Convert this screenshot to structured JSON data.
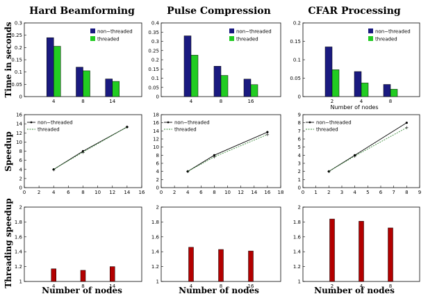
{
  "row_labels": [
    "Time in seconds",
    "Speedup",
    "Threading speedup"
  ],
  "colors": {
    "non_threaded_bar": "#1a1a80",
    "threaded_bar": "#22cc22",
    "threading_bar": "#b30000",
    "speedup_line": "#000000",
    "speedup_threaded_line": "#3a8a3a"
  },
  "chart_data": [
    {
      "id": "hb-time",
      "type": "bar",
      "title": "Hard Beamforming",
      "xlabel": "",
      "ylabel": "Time in seconds",
      "categories": [
        "4",
        "8",
        "14"
      ],
      "ylim": [
        0,
        0.3
      ],
      "yticks": [
        "0",
        "0.05",
        "0.1",
        "0.15",
        "0.2",
        "0.25",
        "0.3"
      ],
      "legend": "top-right",
      "series": [
        {
          "name": "non−threaded",
          "values": [
            0.24,
            0.12,
            0.072
          ]
        },
        {
          "name": "threaded",
          "values": [
            0.205,
            0.105,
            0.062
          ]
        }
      ]
    },
    {
      "id": "pc-time",
      "type": "bar",
      "title": "Pulse Compression",
      "xlabel": "",
      "ylabel": "",
      "categories": [
        "4",
        "8",
        "16"
      ],
      "ylim": [
        0,
        0.4
      ],
      "yticks": [
        "0",
        "0.05",
        "0.1",
        "0.15",
        "0.2",
        "0.25",
        "0.3",
        "0.35",
        "0.4"
      ],
      "legend": "top-right",
      "series": [
        {
          "name": "non−threaded",
          "values": [
            0.33,
            0.165,
            0.095
          ]
        },
        {
          "name": "threaded",
          "values": [
            0.225,
            0.115,
            0.065
          ]
        }
      ]
    },
    {
      "id": "cfar-time",
      "type": "bar",
      "title": "CFAR Processing",
      "xlabel": "Number of nodes",
      "ylabel": "",
      "categories": [
        "2",
        "4",
        "8"
      ],
      "ylim": [
        0,
        0.2
      ],
      "yticks": [
        "0",
        "0.05",
        "0.1",
        "0.15",
        "0.2"
      ],
      "legend": "top-right",
      "series": [
        {
          "name": "non−threaded",
          "values": [
            0.135,
            0.068,
            0.033
          ]
        },
        {
          "name": "threaded",
          "values": [
            0.073,
            0.037,
            0.02
          ]
        }
      ]
    },
    {
      "id": "hb-speedup",
      "type": "line",
      "title": "",
      "xlabel": "",
      "ylabel": "Speedup",
      "xlim": [
        0,
        16
      ],
      "ylim": [
        0,
        16
      ],
      "xticks": [
        "0",
        "2",
        "4",
        "6",
        "8",
        "10",
        "12",
        "14",
        "16"
      ],
      "yticks": [
        "0",
        "2",
        "4",
        "6",
        "8",
        "10",
        "12",
        "14",
        "16"
      ],
      "legend": "top-left",
      "series": [
        {
          "name": "non−threaded",
          "x": [
            4,
            8,
            14
          ],
          "y": [
            4,
            8,
            13.3
          ]
        },
        {
          "name": "threaded",
          "x": [
            4,
            8,
            14
          ],
          "y": [
            4,
            7.8,
            13.3
          ]
        }
      ]
    },
    {
      "id": "pc-speedup",
      "type": "line",
      "title": "",
      "xlabel": "",
      "ylabel": "",
      "xlim": [
        0,
        18
      ],
      "ylim": [
        0,
        18
      ],
      "xticks": [
        "0",
        "2",
        "4",
        "6",
        "8",
        "10",
        "12",
        "14",
        "16",
        "18"
      ],
      "yticks": [
        "0",
        "2",
        "4",
        "6",
        "8",
        "10",
        "12",
        "14",
        "16",
        "18"
      ],
      "legend": "top-left",
      "series": [
        {
          "name": "non−threaded",
          "x": [
            4,
            8,
            16
          ],
          "y": [
            4,
            8,
            13.7
          ]
        },
        {
          "name": "threaded",
          "x": [
            4,
            8,
            16
          ],
          "y": [
            4,
            7.6,
            13.1
          ]
        }
      ]
    },
    {
      "id": "cfar-speedup",
      "type": "line",
      "title": "",
      "xlabel": "",
      "ylabel": "",
      "xlim": [
        0,
        9
      ],
      "ylim": [
        0,
        9
      ],
      "xticks": [
        "0",
        "1",
        "2",
        "3",
        "4",
        "5",
        "6",
        "7",
        "8",
        "9"
      ],
      "yticks": [
        "0",
        "1",
        "2",
        "3",
        "4",
        "5",
        "6",
        "7",
        "8",
        "9"
      ],
      "legend": "top-left",
      "series": [
        {
          "name": "non−threaded",
          "x": [
            2,
            4,
            8
          ],
          "y": [
            2,
            4,
            8
          ]
        },
        {
          "name": "threaded",
          "x": [
            2,
            4,
            8
          ],
          "y": [
            2,
            3.9,
            7.4
          ]
        }
      ]
    },
    {
      "id": "hb-threading",
      "type": "bar",
      "title": "",
      "xlabel": "Number of nodes",
      "ylabel": "Threading speedup",
      "categories": [
        "4",
        "8",
        "14"
      ],
      "ylim": [
        1,
        2
      ],
      "yticks": [
        "1",
        "1.2",
        "1.4",
        "1.6",
        "1.8",
        "2"
      ],
      "series": [
        {
          "name": "",
          "values": [
            1.17,
            1.15,
            1.2
          ]
        }
      ]
    },
    {
      "id": "pc-threading",
      "type": "bar",
      "title": "",
      "xlabel": "Number of nodes",
      "ylabel": "",
      "categories": [
        "4",
        "8",
        "16"
      ],
      "ylim": [
        1,
        2
      ],
      "yticks": [
        "1",
        "1.2",
        "1.4",
        "1.6",
        "1.8",
        "2"
      ],
      "series": [
        {
          "name": "",
          "values": [
            1.46,
            1.43,
            1.41
          ]
        }
      ]
    },
    {
      "id": "cfar-threading",
      "type": "bar",
      "title": "",
      "xlabel": "Number of nodes",
      "ylabel": "",
      "categories": [
        "2",
        "4",
        "8"
      ],
      "ylim": [
        1,
        2
      ],
      "yticks": [
        "1",
        "1.2",
        "1.4",
        "1.6",
        "1.8",
        "2"
      ],
      "series": [
        {
          "name": "",
          "values": [
            1.84,
            1.81,
            1.72
          ]
        }
      ]
    }
  ]
}
